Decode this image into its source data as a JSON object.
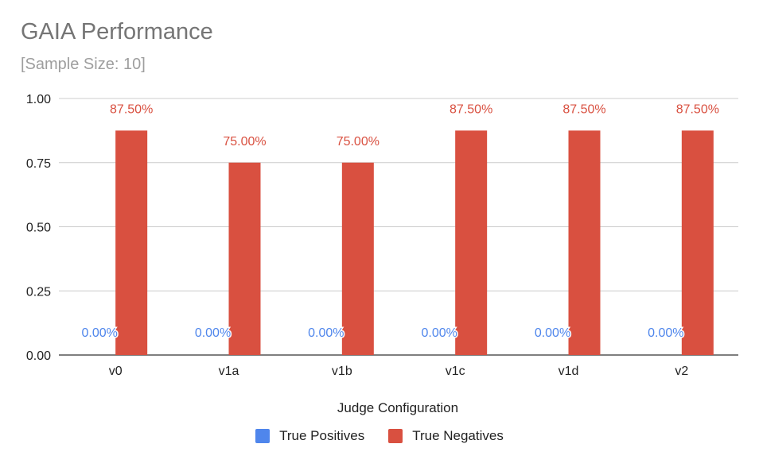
{
  "title": "GAIA Performance",
  "subtitle": "[Sample Size: 10]",
  "chart_data": {
    "type": "bar",
    "title": "GAIA Performance",
    "subtitle": "[Sample Size: 10]",
    "xlabel": "Judge Configuration",
    "ylabel": "",
    "ylim": [
      0,
      1
    ],
    "yticks": [
      0,
      0.25,
      0.5,
      0.75,
      1
    ],
    "ytick_labels": [
      "0.00",
      "0.25",
      "0.50",
      "0.75",
      "1.00"
    ],
    "categories": [
      "v0",
      "v1a",
      "v1b",
      "v1c",
      "v1d",
      "v2"
    ],
    "grid": true,
    "legend_position": "bottom",
    "series": [
      {
        "name": "True Positives",
        "color": "#4f86ec",
        "values": [
          0,
          0,
          0,
          0,
          0,
          0
        ],
        "labels": [
          "0.00%",
          "0.00%",
          "0.00%",
          "0.00%",
          "0.00%",
          "0.00%"
        ]
      },
      {
        "name": "True Negatives",
        "color": "#d95040",
        "values": [
          0.875,
          0.75,
          0.75,
          0.875,
          0.875,
          0.875
        ],
        "labels": [
          "87.50%",
          "75.00%",
          "75.00%",
          "87.50%",
          "87.50%",
          "87.50%"
        ]
      }
    ]
  }
}
